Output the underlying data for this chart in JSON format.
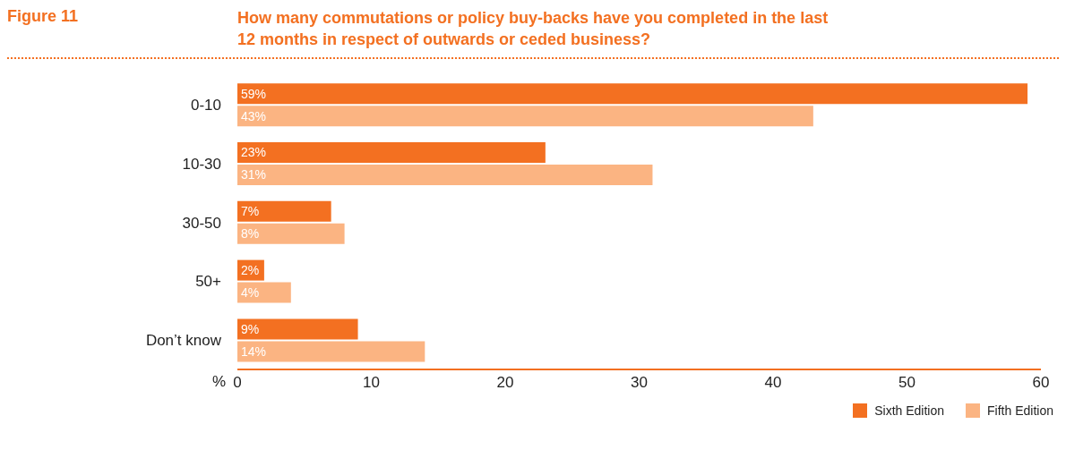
{
  "chart_data": {
    "type": "bar",
    "orientation": "horizontal",
    "title": "How many commutations or policy buy-backs have you completed in the last 12 months in respect of outwards or ceded business?",
    "annotations": [
      "Figure 11"
    ],
    "categories": [
      "0-10",
      "10-30",
      "30-50",
      "50+",
      "Don’t know"
    ],
    "series": [
      {
        "name": "Sixth Edition",
        "color": "#f37021",
        "values": [
          59,
          23,
          7,
          2,
          9
        ],
        "value_labels": [
          "59%",
          "23%",
          "7%",
          "2%",
          "9%"
        ]
      },
      {
        "name": "Fifth Edition",
        "color": "#fbb482",
        "values": [
          43,
          31,
          8,
          4,
          14
        ],
        "value_labels": [
          "43%",
          "31%",
          "8%",
          "4%",
          "14%"
        ]
      }
    ],
    "xlabel": "%",
    "xlim": [
      0,
      60
    ],
    "xticks": [
      0,
      10,
      20,
      30,
      40,
      50,
      60
    ],
    "grid": false,
    "legend": "bottom right"
  }
}
